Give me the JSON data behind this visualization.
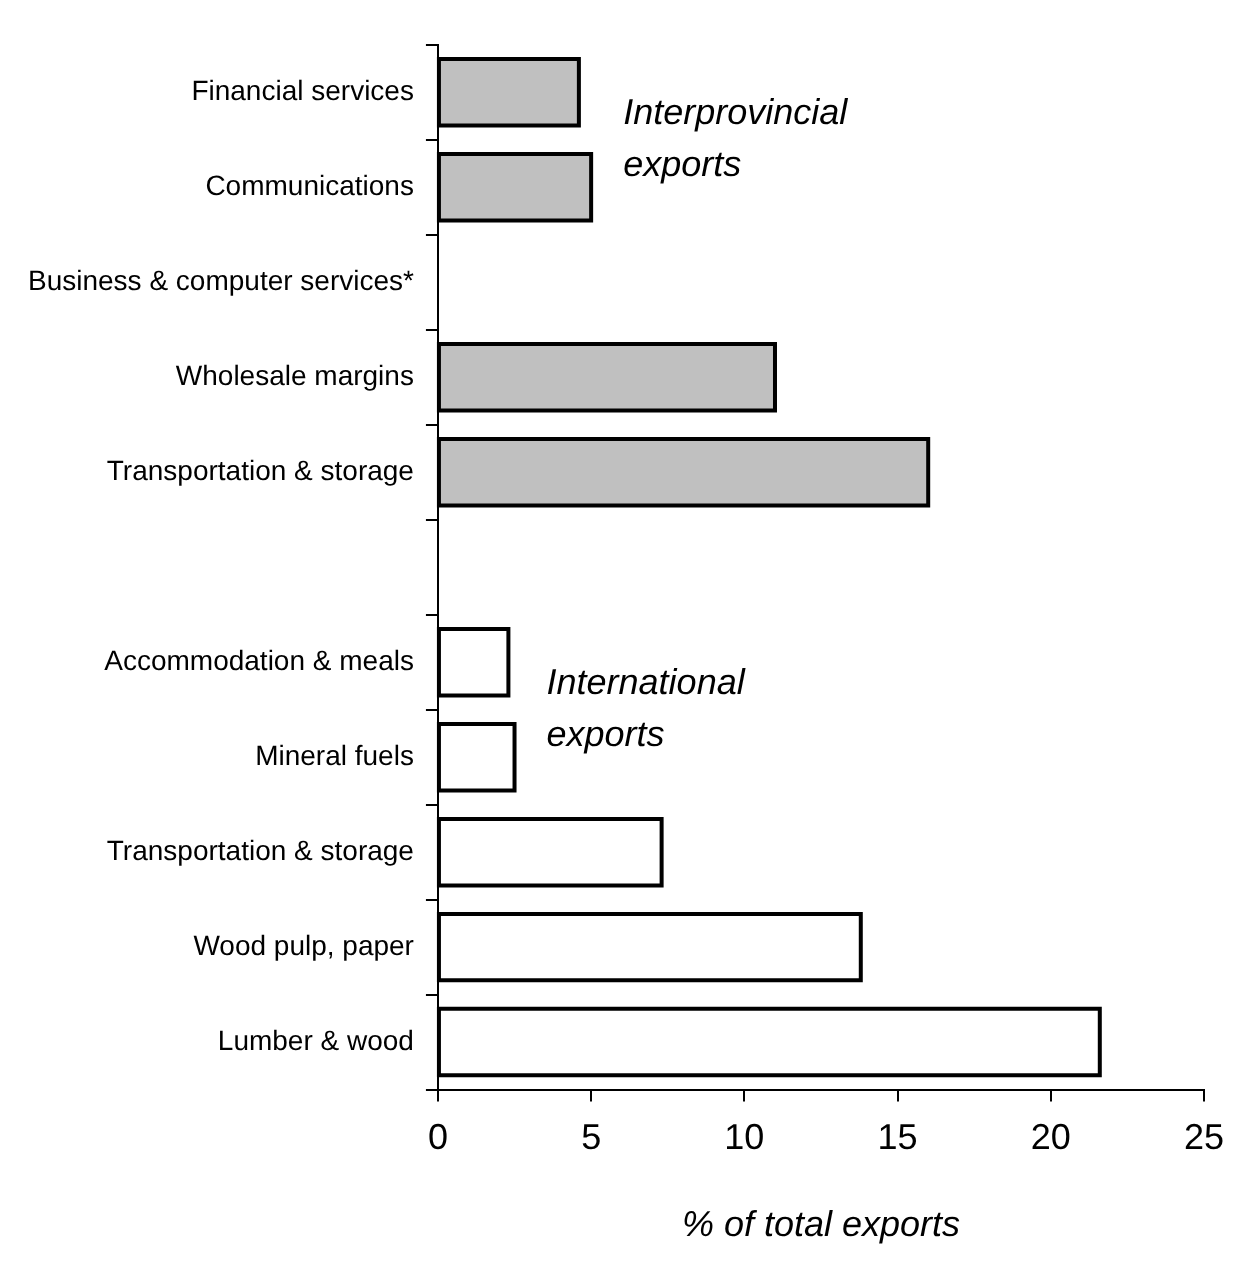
{
  "chart_data": {
    "type": "bar",
    "orientation": "horizontal",
    "categories": [
      "Financial services",
      "Communications",
      "Business & computer services*",
      "Wholesale margins",
      "Transportation & storage",
      null,
      "Accommodation & meals",
      "Mineral fuels",
      "Transportation & storage",
      "Wood pulp, paper",
      "Lumber & wood"
    ],
    "series": [
      {
        "name": "Interprovincial exports",
        "color": "#c0c0c0",
        "values": [
          4.6,
          5.0,
          null,
          11.0,
          16.0,
          null,
          null,
          null,
          null,
          null,
          null
        ]
      },
      {
        "name": "International exports",
        "color": "#ffffff",
        "values": [
          null,
          null,
          null,
          null,
          null,
          null,
          2.3,
          2.5,
          7.3,
          13.8,
          21.6
        ]
      }
    ],
    "xlabel": "% of total exports",
    "xlim": [
      0,
      25
    ],
    "xticks": [
      0,
      5,
      10,
      15,
      20,
      25
    ],
    "grid": false,
    "legend": false
  }
}
